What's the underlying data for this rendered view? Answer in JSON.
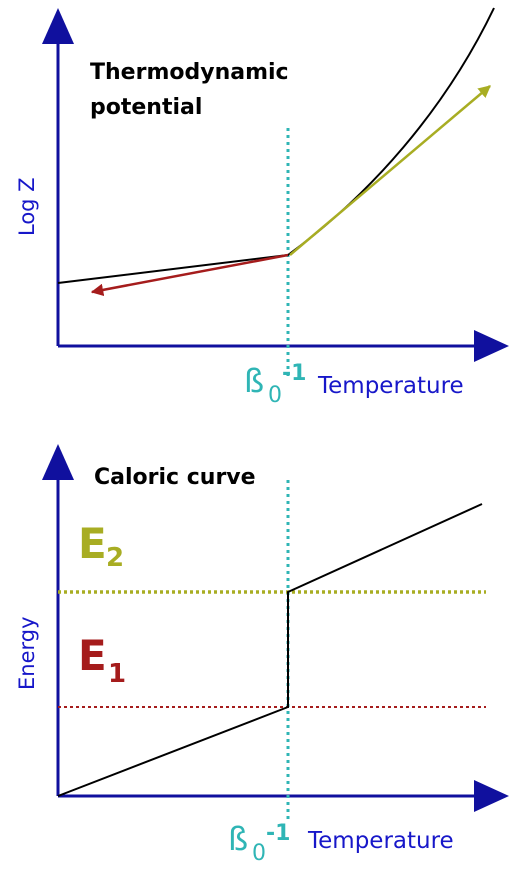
{
  "colors": {
    "axis": "#10109e",
    "axis_label": "#1717c9",
    "curve": "#000000",
    "dashed_beta": "#2fb5b5",
    "arrow_low": "#a51c1c",
    "arrow_high": "#a8ad23",
    "e1": "#a51c1c",
    "e2": "#a8ad23"
  },
  "top_panel": {
    "title_line1": "Thermodynamic",
    "title_line2": "potential",
    "y_label": "Log Z",
    "x_label": "Temperature",
    "beta_base": "ß",
    "beta_sub": "0",
    "beta_sup": "-1"
  },
  "bottom_panel": {
    "title": "Caloric curve",
    "y_label": "Energy",
    "x_label": "Temperature",
    "beta_base": "ß",
    "beta_sub": "0",
    "beta_sup": "-1",
    "e2_base": "E",
    "e2_sub": "2",
    "e1_base": "E",
    "e1_sub": "1"
  }
}
